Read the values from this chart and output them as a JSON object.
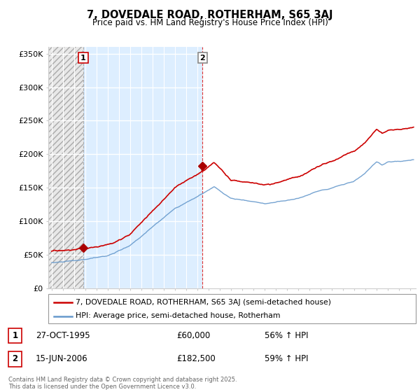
{
  "title": "7, DOVEDALE ROAD, ROTHERHAM, S65 3AJ",
  "subtitle": "Price paid vs. HM Land Registry's House Price Index (HPI)",
  "ylabel_ticks": [
    "£0",
    "£50K",
    "£100K",
    "£150K",
    "£200K",
    "£250K",
    "£300K",
    "£350K"
  ],
  "ylim": [
    0,
    360000
  ],
  "xlim_start": 1992.7,
  "xlim_end": 2025.5,
  "sale1_date": 1995.82,
  "sale1_price": 60000,
  "sale1_label": "1",
  "sale2_date": 2006.46,
  "sale2_price": 182500,
  "sale2_label": "2",
  "line_color_property": "#cc0000",
  "line_color_hpi": "#6699cc",
  "marker_color": "#aa0000",
  "legend_property": "7, DOVEDALE ROAD, ROTHERHAM, S65 3AJ (semi-detached house)",
  "legend_hpi": "HPI: Average price, semi-detached house, Rotherham",
  "annotation1_date": "27-OCT-1995",
  "annotation1_price": "£60,000",
  "annotation1_pct": "56% ↑ HPI",
  "annotation2_date": "15-JUN-2006",
  "annotation2_price": "£182,500",
  "annotation2_pct": "59% ↑ HPI",
  "footer": "Contains HM Land Registry data © Crown copyright and database right 2025.\nThis data is licensed under the Open Government Licence v3.0."
}
